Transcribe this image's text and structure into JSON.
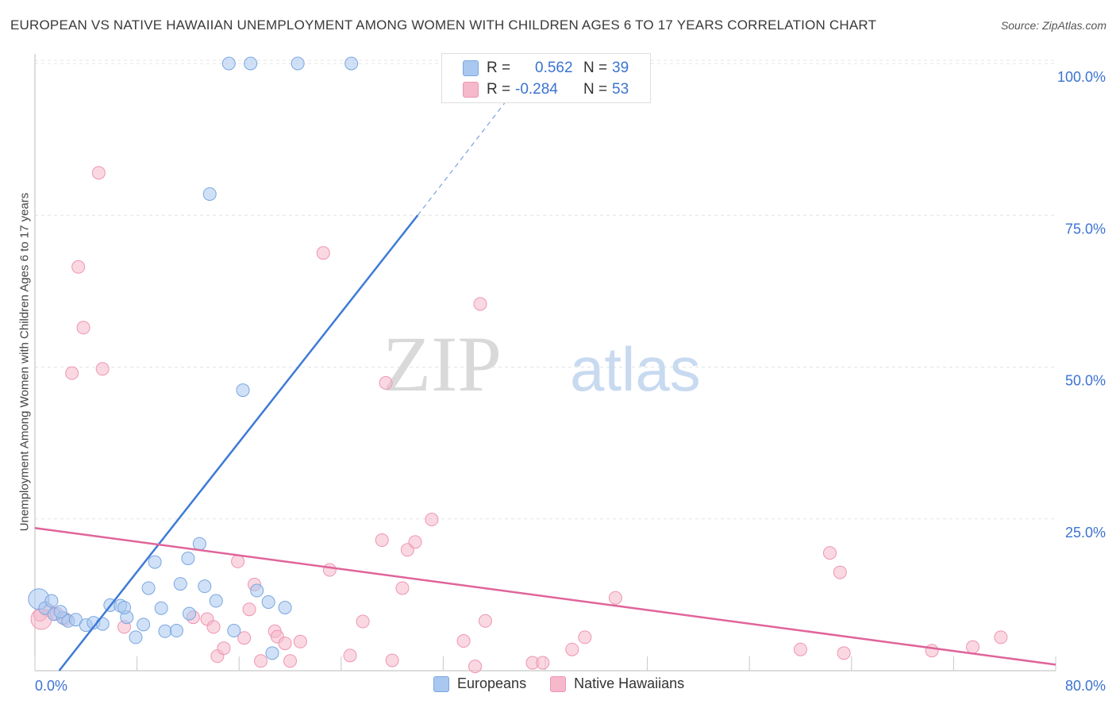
{
  "title": "EUROPEAN VS NATIVE HAWAIIAN UNEMPLOYMENT AMONG WOMEN WITH CHILDREN AGES 6 TO 17 YEARS CORRELATION CHART",
  "source": "Source: ZipAtlas.com",
  "watermark": {
    "zip": "ZIP",
    "atlas": "atlas"
  },
  "colors": {
    "european_fill": "#a9c8f0",
    "european_stroke": "#7aa6e0",
    "european_line": "#3e7ad6",
    "hawaiian_fill": "#f6b8cb",
    "hawaiian_stroke": "#ee95b2",
    "hawaiian_line": "#e0649a",
    "tick_label": "#3b73d1",
    "grid": "#e4e4e4"
  },
  "inset_legend": {
    "rows": [
      {
        "r_label": "R =",
        "r_value": "0.562",
        "n_label": "N =",
        "n_value": "39"
      },
      {
        "r_label": "R =",
        "r_value": "-0.284",
        "n_label": "N =",
        "n_value": "53"
      }
    ]
  },
  "chart_data": {
    "type": "scatter",
    "title": "EUROPEAN VS NATIVE HAWAIIAN UNEMPLOYMENT AMONG WOMEN WITH CHILDREN AGES 6 TO 17 YEARS CORRELATION CHART",
    "xlabel": "",
    "ylabel": "Unemployment Among Women with Children Ages 6 to 17 years",
    "xlim": [
      0,
      80
    ],
    "ylim": [
      0,
      102
    ],
    "x_tick_labels": [
      "0.0%",
      "80.0%"
    ],
    "y_ticks": [
      25,
      50,
      75,
      100
    ],
    "y_tick_labels": [
      "25.0%",
      "50.0%",
      "75.0%",
      "100.0%"
    ],
    "grid": true,
    "series": [
      {
        "name": "Europeans",
        "r": 0.562,
        "n": 39,
        "trend": {
          "x0": 1.9,
          "y0": 0,
          "x1": 30.0,
          "y1": 75.0,
          "dash_to_x": 37.0,
          "dash_to_y": 94.0
        },
        "points": [
          [
            0.3,
            11.8
          ],
          [
            0.8,
            10.3
          ],
          [
            1.5,
            9.3
          ],
          [
            2.2,
            8.7
          ],
          [
            2.6,
            8.2
          ],
          [
            3.2,
            8.4
          ],
          [
            4.0,
            7.5
          ],
          [
            4.6,
            7.9
          ],
          [
            5.3,
            7.7
          ],
          [
            5.9,
            10.8
          ],
          [
            6.7,
            10.7
          ],
          [
            7.2,
            8.8
          ],
          [
            7.9,
            5.5
          ],
          [
            8.5,
            7.6
          ],
          [
            8.9,
            13.6
          ],
          [
            9.4,
            17.9
          ],
          [
            9.9,
            10.3
          ],
          [
            10.2,
            6.5
          ],
          [
            11.1,
            6.6
          ],
          [
            11.4,
            14.3
          ],
          [
            12.1,
            9.4
          ],
          [
            12.9,
            20.9
          ],
          [
            13.3,
            13.9
          ],
          [
            13.7,
            78.5
          ],
          [
            14.2,
            11.5
          ],
          [
            15.2,
            100
          ],
          [
            15.6,
            6.6
          ],
          [
            16.3,
            46.2
          ],
          [
            16.9,
            100
          ],
          [
            17.4,
            13.2
          ],
          [
            18.3,
            11.3
          ],
          [
            18.6,
            2.9
          ],
          [
            19.6,
            10.4
          ],
          [
            20.6,
            100
          ],
          [
            24.8,
            100
          ],
          [
            1.3,
            11.5
          ],
          [
            2.0,
            9.7
          ],
          [
            12.0,
            18.5
          ],
          [
            7.0,
            10.4
          ]
        ]
      },
      {
        "name": "Native Hawaiians",
        "r": -0.284,
        "n": 53,
        "trend": {
          "x0": 0,
          "y0": 23.5,
          "x1": 80,
          "y1": 1.0
        },
        "points": [
          [
            0.4,
            9.2
          ],
          [
            1.1,
            9.9
          ],
          [
            1.7,
            9.4
          ],
          [
            2.4,
            8.5
          ],
          [
            2.9,
            49.0
          ],
          [
            3.4,
            66.5
          ],
          [
            3.8,
            56.5
          ],
          [
            5.0,
            82.0
          ],
          [
            5.3,
            49.7
          ],
          [
            7.0,
            7.2
          ],
          [
            12.4,
            8.8
          ],
          [
            13.5,
            8.5
          ],
          [
            14.0,
            7.2
          ],
          [
            14.3,
            2.4
          ],
          [
            14.8,
            3.7
          ],
          [
            15.9,
            18.0
          ],
          [
            16.4,
            5.4
          ],
          [
            16.8,
            10.1
          ],
          [
            17.2,
            14.2
          ],
          [
            17.7,
            1.6
          ],
          [
            18.8,
            6.5
          ],
          [
            19.0,
            5.6
          ],
          [
            19.6,
            4.5
          ],
          [
            20.0,
            1.6
          ],
          [
            20.8,
            4.8
          ],
          [
            22.6,
            68.8
          ],
          [
            23.1,
            16.6
          ],
          [
            24.7,
            2.5
          ],
          [
            25.7,
            8.1
          ],
          [
            27.2,
            21.5
          ],
          [
            27.5,
            47.4
          ],
          [
            28.0,
            1.7
          ],
          [
            28.8,
            13.6
          ],
          [
            29.2,
            19.9
          ],
          [
            29.8,
            21.2
          ],
          [
            31.1,
            24.9
          ],
          [
            33.6,
            4.9
          ],
          [
            34.5,
            0.7
          ],
          [
            34.9,
            60.4
          ],
          [
            35.3,
            8.2
          ],
          [
            39.0,
            1.3
          ],
          [
            39.8,
            1.3
          ],
          [
            42.1,
            3.5
          ],
          [
            43.1,
            5.5
          ],
          [
            45.5,
            12.0
          ],
          [
            60.0,
            3.5
          ],
          [
            62.3,
            19.4
          ],
          [
            63.1,
            16.2
          ],
          [
            63.4,
            2.9
          ],
          [
            70.3,
            3.3
          ],
          [
            73.5,
            3.9
          ],
          [
            75.7,
            5.5
          ],
          [
            0.5,
            8.5
          ]
        ]
      }
    ]
  },
  "legend": {
    "items": [
      "Europeans",
      "Native Hawaiians"
    ],
    "placement": "bottom-center"
  }
}
